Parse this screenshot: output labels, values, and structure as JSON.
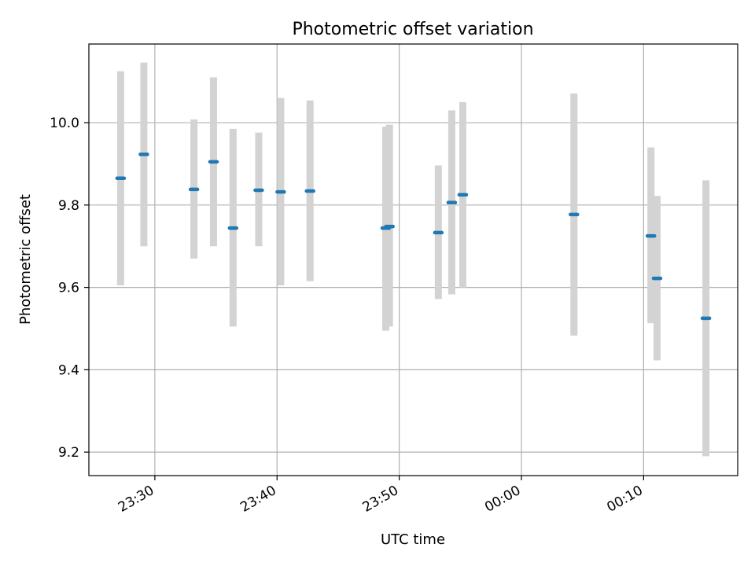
{
  "chart_data": {
    "type": "scatter",
    "title": "Photometric offset variation",
    "xlabel": "UTC time",
    "ylabel": "Photometric offset",
    "x_ticks": [
      "23:30",
      "23:40",
      "23:50",
      "00:00",
      "00:10"
    ],
    "x_tick_minutes": [
      -30,
      -20,
      -10,
      0,
      10
    ],
    "xlim_minutes": [
      -35.4,
      17.7
    ],
    "y_ticks": [
      "9.2",
      "9.4",
      "9.6",
      "9.8",
      "10.0"
    ],
    "y_tick_values": [
      9.2,
      9.4,
      9.6,
      9.8,
      10.0
    ],
    "ylim": [
      9.143,
      10.191
    ],
    "grid": true,
    "colors": {
      "marker": "#1f77b4",
      "errorbar": "#d3d3d3",
      "grid": "#b0b0b0"
    },
    "points": [
      {
        "t": -32.8,
        "y": 9.865,
        "ymin": 9.605,
        "ymax": 10.125
      },
      {
        "t": -30.9,
        "y": 9.923,
        "ymin": 9.7,
        "ymax": 10.146
      },
      {
        "t": -26.8,
        "y": 9.838,
        "ymin": 9.67,
        "ymax": 10.008
      },
      {
        "t": -25.2,
        "y": 9.905,
        "ymin": 9.7,
        "ymax": 10.11
      },
      {
        "t": -23.6,
        "y": 9.744,
        "ymin": 9.505,
        "ymax": 9.985
      },
      {
        "t": -21.5,
        "y": 9.836,
        "ymin": 9.7,
        "ymax": 9.976
      },
      {
        "t": -19.7,
        "y": 9.832,
        "ymin": 9.605,
        "ymax": 10.06
      },
      {
        "t": -17.3,
        "y": 9.834,
        "ymin": 9.615,
        "ymax": 10.054
      },
      {
        "t": -11.1,
        "y": 9.744,
        "ymin": 9.495,
        "ymax": 9.99
      },
      {
        "t": -10.8,
        "y": 9.748,
        "ymin": 9.505,
        "ymax": 9.995
      },
      {
        "t": -6.8,
        "y": 9.733,
        "ymin": 9.572,
        "ymax": 9.896
      },
      {
        "t": -5.7,
        "y": 9.806,
        "ymin": 9.583,
        "ymax": 10.03
      },
      {
        "t": -4.8,
        "y": 9.825,
        "ymin": 9.6,
        "ymax": 10.05
      },
      {
        "t": 4.3,
        "y": 9.777,
        "ymin": 9.483,
        "ymax": 10.071
      },
      {
        "t": 10.6,
        "y": 9.725,
        "ymin": 9.513,
        "ymax": 9.94
      },
      {
        "t": 11.1,
        "y": 9.622,
        "ymin": 9.423,
        "ymax": 9.822
      },
      {
        "t": 15.1,
        "y": 9.525,
        "ymin": 9.19,
        "ymax": 9.86
      }
    ]
  }
}
